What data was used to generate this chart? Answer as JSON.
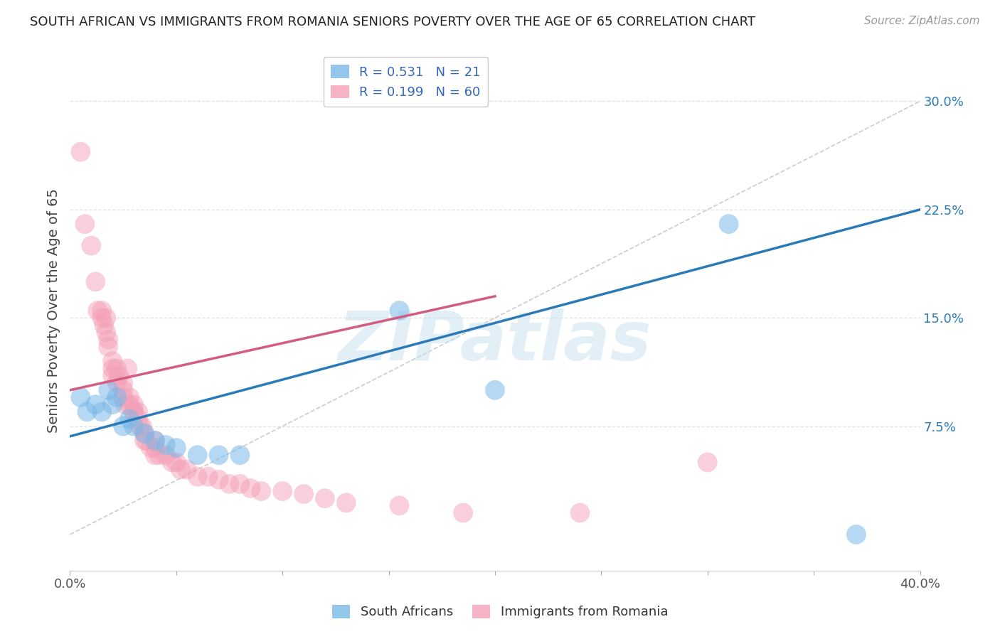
{
  "title": "SOUTH AFRICAN VS IMMIGRANTS FROM ROMANIA SENIORS POVERTY OVER THE AGE OF 65 CORRELATION CHART",
  "source": "Source: ZipAtlas.com",
  "ylabel": "Seniors Poverty Over the Age of 65",
  "xlim": [
    0.0,
    0.4
  ],
  "ylim": [
    -0.025,
    0.335
  ],
  "yticks": [
    0.075,
    0.15,
    0.225,
    0.3
  ],
  "yticklabels": [
    "7.5%",
    "15.0%",
    "22.5%",
    "30.0%"
  ],
  "xtick_positions": [
    0.0,
    0.05,
    0.1,
    0.15,
    0.2,
    0.25,
    0.3,
    0.35,
    0.4
  ],
  "watermark": "ZIPatlas",
  "blue_color": "#7ab8e8",
  "pink_color": "#f4a0b8",
  "blue_line_color": "#2a7ab8",
  "pink_line_color": "#d45c80",
  "ref_line_color": "#cccccc",
  "grid_color": "#e0e0e0",
  "legend_entries": [
    {
      "label": "R = 0.531   N = 21",
      "color": "#7ab8e8"
    },
    {
      "label": "R = 0.199   N = 60",
      "color": "#f4a0b8"
    }
  ],
  "blue_scatter": [
    [
      0.005,
      0.095
    ],
    [
      0.008,
      0.085
    ],
    [
      0.012,
      0.09
    ],
    [
      0.015,
      0.085
    ],
    [
      0.018,
      0.1
    ],
    [
      0.02,
      0.09
    ],
    [
      0.022,
      0.095
    ],
    [
      0.025,
      0.075
    ],
    [
      0.028,
      0.08
    ],
    [
      0.03,
      0.075
    ],
    [
      0.035,
      0.07
    ],
    [
      0.04,
      0.065
    ],
    [
      0.045,
      0.062
    ],
    [
      0.05,
      0.06
    ],
    [
      0.06,
      0.055
    ],
    [
      0.07,
      0.055
    ],
    [
      0.08,
      0.055
    ],
    [
      0.155,
      0.155
    ],
    [
      0.2,
      0.1
    ],
    [
      0.31,
      0.215
    ],
    [
      0.37,
      0.0
    ]
  ],
  "pink_scatter": [
    [
      0.005,
      0.265
    ],
    [
      0.007,
      0.215
    ],
    [
      0.01,
      0.2
    ],
    [
      0.012,
      0.175
    ],
    [
      0.013,
      0.155
    ],
    [
      0.015,
      0.15
    ],
    [
      0.015,
      0.155
    ],
    [
      0.016,
      0.145
    ],
    [
      0.017,
      0.15
    ],
    [
      0.017,
      0.14
    ],
    [
      0.018,
      0.135
    ],
    [
      0.018,
      0.13
    ],
    [
      0.02,
      0.12
    ],
    [
      0.02,
      0.115
    ],
    [
      0.02,
      0.11
    ],
    [
      0.022,
      0.115
    ],
    [
      0.022,
      0.105
    ],
    [
      0.023,
      0.11
    ],
    [
      0.025,
      0.105
    ],
    [
      0.025,
      0.1
    ],
    [
      0.025,
      0.095
    ],
    [
      0.026,
      0.09
    ],
    [
      0.027,
      0.115
    ],
    [
      0.028,
      0.09
    ],
    [
      0.028,
      0.095
    ],
    [
      0.03,
      0.085
    ],
    [
      0.03,
      0.09
    ],
    [
      0.03,
      0.085
    ],
    [
      0.032,
      0.085
    ],
    [
      0.032,
      0.08
    ],
    [
      0.033,
      0.075
    ],
    [
      0.034,
      0.075
    ],
    [
      0.035,
      0.07
    ],
    [
      0.035,
      0.065
    ],
    [
      0.036,
      0.065
    ],
    [
      0.038,
      0.06
    ],
    [
      0.04,
      0.065
    ],
    [
      0.04,
      0.06
    ],
    [
      0.04,
      0.055
    ],
    [
      0.042,
      0.055
    ],
    [
      0.045,
      0.055
    ],
    [
      0.048,
      0.05
    ],
    [
      0.05,
      0.05
    ],
    [
      0.052,
      0.045
    ],
    [
      0.055,
      0.045
    ],
    [
      0.06,
      0.04
    ],
    [
      0.065,
      0.04
    ],
    [
      0.07,
      0.038
    ],
    [
      0.075,
      0.035
    ],
    [
      0.08,
      0.035
    ],
    [
      0.085,
      0.032
    ],
    [
      0.09,
      0.03
    ],
    [
      0.1,
      0.03
    ],
    [
      0.11,
      0.028
    ],
    [
      0.12,
      0.025
    ],
    [
      0.13,
      0.022
    ],
    [
      0.155,
      0.02
    ],
    [
      0.185,
      0.015
    ],
    [
      0.24,
      0.015
    ],
    [
      0.3,
      0.05
    ]
  ],
  "blue_line": {
    "x0": 0.0,
    "y0": 0.068,
    "x1": 0.4,
    "y1": 0.225
  },
  "pink_line": {
    "x0": 0.0,
    "y0": 0.1,
    "x1": 0.2,
    "y1": 0.165
  },
  "ref_line": {
    "x0": 0.0,
    "y0": 0.0,
    "x1": 0.4,
    "y1": 0.3
  }
}
